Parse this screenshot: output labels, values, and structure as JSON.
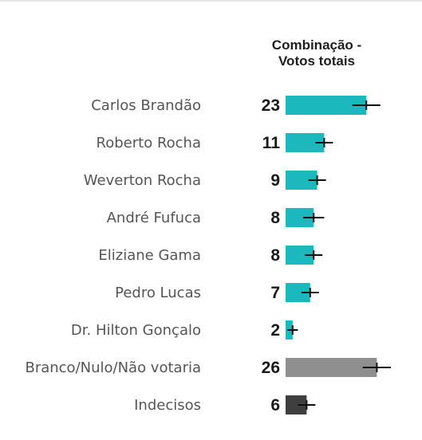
{
  "chart_data": {
    "type": "bar",
    "orientation": "horizontal",
    "title": "Combinação -\nVotos totais",
    "categories": [
      "Carlos Brandão",
      "Roberto Rocha",
      "Weverton Rocha",
      "André Fufuca",
      "Eliziane Gama",
      "Pedro Lucas",
      "Dr. Hilton Gonçalo",
      "Branco/Nulo/Não votaria",
      "Indecisos"
    ],
    "values": [
      23,
      11,
      9,
      8,
      8,
      7,
      2,
      26,
      6
    ],
    "error_margin": [
      4,
      2.5,
      2.5,
      3,
      2.5,
      2.5,
      1.5,
      4,
      2.5
    ],
    "bar_colors": [
      "#1bb8be",
      "#1bb8be",
      "#1bb8be",
      "#1bb8be",
      "#1bb8be",
      "#1bb8be",
      "#1bb8be",
      "#8f8f8f",
      "#3f3f3f"
    ],
    "xlim": [
      0,
      30
    ],
    "grid": false,
    "legend": "none"
  }
}
